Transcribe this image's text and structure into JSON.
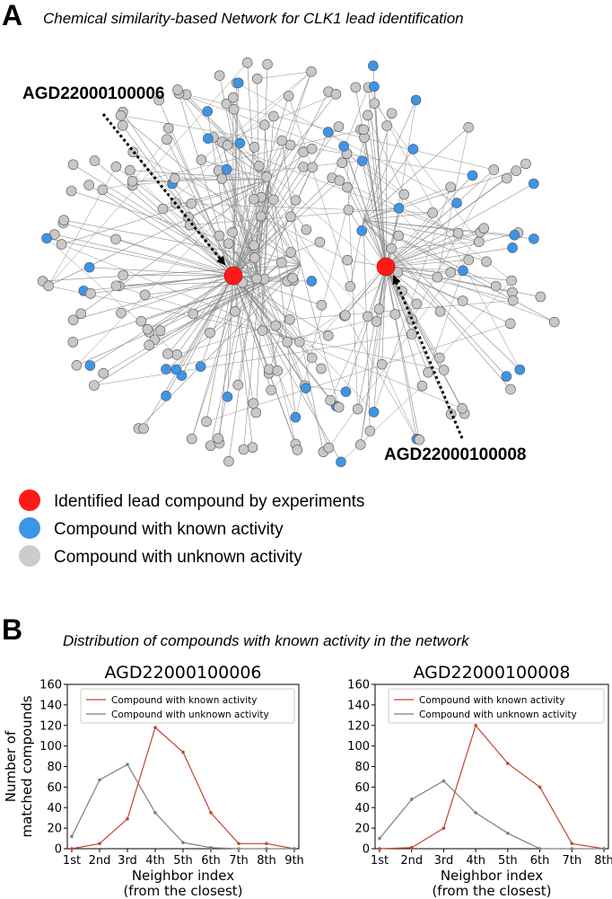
{
  "panel_a": {
    "letter": "A",
    "title": "Chemical similarity-based Network for CLK1 lead identification",
    "callout_left": "AGD22000100006",
    "callout_right": "AGD22000100008",
    "legend": [
      {
        "label": "Identified lead compound by experiments",
        "color": "#ff1a1a"
      },
      {
        "label": "Compound with known activity",
        "color": "#3d95e8"
      },
      {
        "label": "Compound with unknown activity",
        "color": "#cccccc"
      }
    ],
    "colors": {
      "lead": "#ff1a1a",
      "known": "#3d95e8",
      "unknown": "#c8c8c8",
      "edge": "#8c8c8c"
    }
  },
  "panel_b": {
    "letter": "B",
    "title": "Distribution of compounds with known activity in the network"
  },
  "chart_data": [
    {
      "type": "line",
      "title": "AGD22000100006",
      "categories": [
        "1st",
        "2nd",
        "3rd",
        "4th",
        "5th",
        "6th",
        "7th",
        "8th",
        "9th"
      ],
      "series": [
        {
          "name": "Compound with known activity",
          "color": "#c0462d",
          "values": [
            0,
            5,
            29,
            118,
            94,
            35,
            5,
            5,
            0
          ]
        },
        {
          "name": "Compound with unknown activity",
          "color": "#7f7f7f",
          "values": [
            12,
            67,
            82,
            35,
            6,
            1,
            0,
            0,
            0
          ]
        }
      ],
      "xlabel": "Neighbor index\n(from the closest)",
      "ylabel": "Number of\nmatched compounds",
      "yticks": [
        0,
        20,
        40,
        60,
        80,
        100,
        120,
        140,
        160
      ],
      "ylim": [
        0,
        160
      ],
      "legend_position": "top-right"
    },
    {
      "type": "line",
      "title": "AGD22000100008",
      "categories": [
        "1st",
        "2nd",
        "3rd",
        "4th",
        "5th",
        "6th",
        "7th",
        "8th"
      ],
      "series": [
        {
          "name": "Compound with known activity",
          "color": "#c0462d",
          "values": [
            0,
            1,
            20,
            120,
            83,
            60,
            5,
            0
          ]
        },
        {
          "name": "Compound with unknown activity",
          "color": "#7f7f7f",
          "values": [
            10,
            48,
            66,
            35,
            15,
            0,
            0,
            0
          ]
        }
      ],
      "xlabel": "Neighbor index\n(from the closest)",
      "ylabel": "",
      "yticks": [
        0,
        20,
        40,
        60,
        80,
        100,
        120,
        140,
        160
      ],
      "ylim": [
        0,
        160
      ],
      "legend_position": "top-right"
    }
  ]
}
